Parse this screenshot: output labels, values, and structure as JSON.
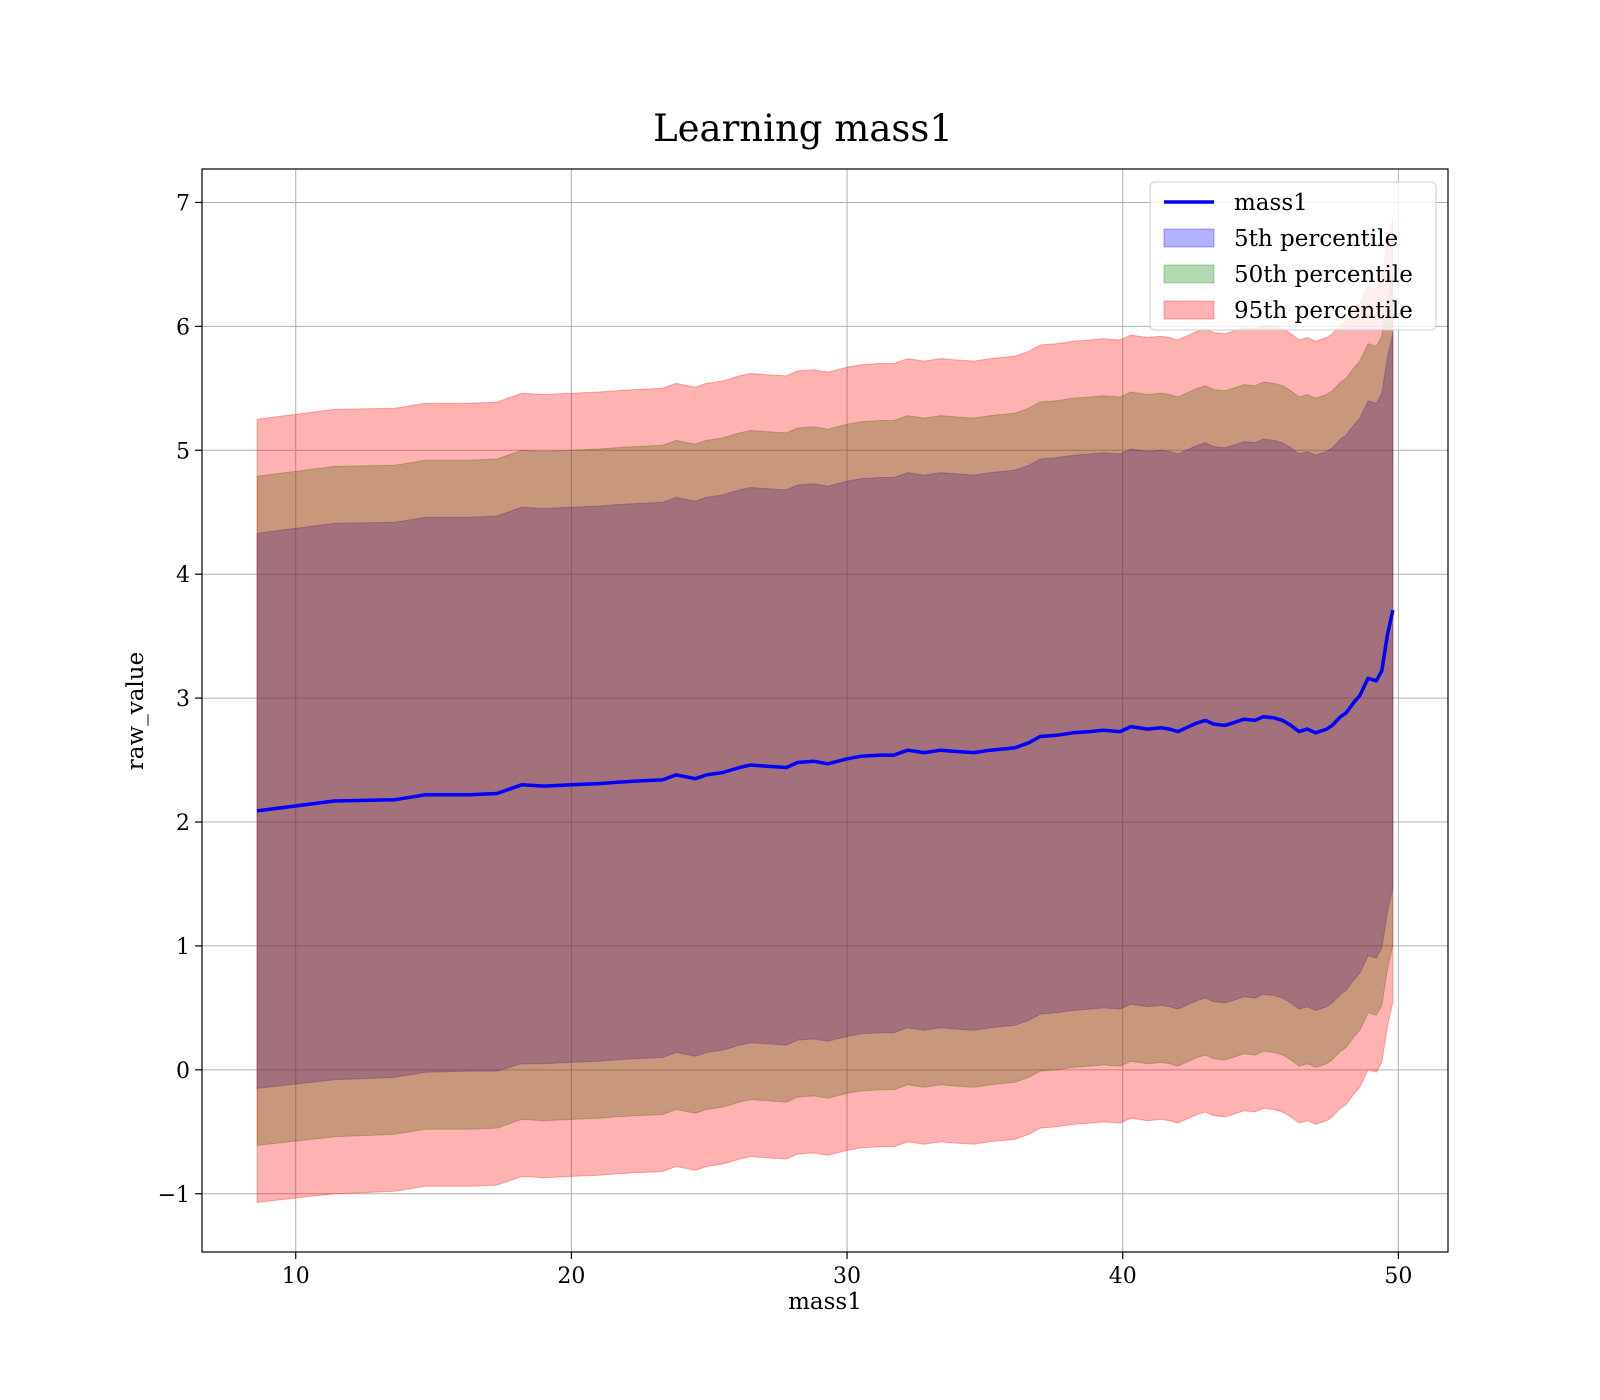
{
  "chart_data": {
    "type": "line",
    "title": "Learning mass1",
    "xlabel": "mass1",
    "ylabel": "raw_value",
    "xlim": [
      6.6,
      51.8
    ],
    "ylim": [
      -1.47,
      7.27
    ],
    "xticks": [
      10,
      20,
      30,
      40,
      50
    ],
    "yticks": [
      -1,
      0,
      1,
      2,
      3,
      4,
      5,
      6,
      7
    ],
    "xtick_labels": [
      "10",
      "20",
      "30",
      "40",
      "50"
    ],
    "ytick_labels": [
      "−1",
      "0",
      "1",
      "2",
      "3",
      "4",
      "5",
      "6",
      "7"
    ],
    "grid": true,
    "legend_position": "top-right",
    "legend": [
      {
        "label": "mass1",
        "kind": "line",
        "color": "#0000ff"
      },
      {
        "label": "5th percentile",
        "kind": "patch",
        "color": "#0000ff"
      },
      {
        "label": "50th percentile",
        "kind": "patch",
        "color": "#008000"
      },
      {
        "label": "95th percentile",
        "kind": "patch",
        "color": "#ff0000"
      }
    ],
    "x": [
      8.6,
      11.4,
      13.6,
      14.7,
      16.3,
      17.3,
      18.2,
      19.0,
      20.0,
      21.0,
      21.6,
      22.3,
      23.3,
      23.8,
      24.5,
      24.9,
      25.5,
      26.1,
      26.5,
      27.1,
      27.8,
      28.2,
      28.8,
      29.3,
      30.0,
      30.5,
      31.2,
      31.7,
      32.2,
      32.8,
      33.4,
      33.9,
      34.6,
      35.2,
      36.1,
      36.6,
      37.0,
      37.6,
      38.2,
      38.8,
      39.3,
      39.9,
      40.3,
      40.9,
      41.4,
      41.7,
      42.0,
      42.3,
      42.7,
      43.0,
      43.3,
      43.7,
      44.0,
      44.4,
      44.8,
      45.1,
      45.5,
      45.8,
      46.1,
      46.4,
      46.7,
      47.0,
      47.4,
      47.6,
      47.9,
      48.1,
      48.4,
      48.6,
      48.9,
      49.2,
      49.4,
      49.6,
      49.8
    ],
    "series": [
      {
        "name": "mass1",
        "color": "#0000ff",
        "values": [
          2.09,
          2.17,
          2.18,
          2.22,
          2.22,
          2.23,
          2.3,
          2.29,
          2.3,
          2.31,
          2.32,
          2.33,
          2.34,
          2.38,
          2.35,
          2.38,
          2.4,
          2.44,
          2.46,
          2.45,
          2.44,
          2.48,
          2.49,
          2.47,
          2.51,
          2.53,
          2.54,
          2.54,
          2.58,
          2.56,
          2.58,
          2.57,
          2.56,
          2.58,
          2.6,
          2.64,
          2.69,
          2.7,
          2.72,
          2.73,
          2.74,
          2.73,
          2.77,
          2.75,
          2.76,
          2.75,
          2.73,
          2.76,
          2.8,
          2.82,
          2.79,
          2.78,
          2.8,
          2.83,
          2.82,
          2.85,
          2.84,
          2.82,
          2.78,
          2.73,
          2.75,
          2.72,
          2.75,
          2.78,
          2.85,
          2.88,
          2.97,
          3.02,
          3.16,
          3.14,
          3.22,
          3.51,
          3.71
        ]
      }
    ],
    "bands": [
      {
        "name": "5th percentile",
        "color": "#0000ff",
        "opacity": 0.3,
        "lower": [
          -0.15,
          -0.08,
          -0.06,
          -0.02,
          -0.01,
          -0.01,
          0.05,
          0.05,
          0.06,
          0.07,
          0.08,
          0.09,
          0.1,
          0.14,
          0.11,
          0.14,
          0.16,
          0.2,
          0.22,
          0.21,
          0.2,
          0.24,
          0.25,
          0.23,
          0.27,
          0.29,
          0.3,
          0.3,
          0.34,
          0.32,
          0.34,
          0.33,
          0.32,
          0.34,
          0.36,
          0.4,
          0.45,
          0.46,
          0.48,
          0.49,
          0.5,
          0.49,
          0.53,
          0.51,
          0.52,
          0.51,
          0.49,
          0.52,
          0.56,
          0.58,
          0.55,
          0.54,
          0.56,
          0.59,
          0.58,
          0.61,
          0.6,
          0.58,
          0.54,
          0.49,
          0.51,
          0.48,
          0.51,
          0.54,
          0.61,
          0.64,
          0.73,
          0.78,
          0.92,
          0.9,
          0.98,
          1.27,
          1.47
        ],
        "upper": [
          4.33,
          4.41,
          4.42,
          4.46,
          4.46,
          4.47,
          4.54,
          4.53,
          4.54,
          4.55,
          4.56,
          4.57,
          4.58,
          4.62,
          4.59,
          4.62,
          4.64,
          4.68,
          4.7,
          4.69,
          4.68,
          4.72,
          4.73,
          4.71,
          4.75,
          4.77,
          4.78,
          4.78,
          4.82,
          4.8,
          4.82,
          4.81,
          4.8,
          4.82,
          4.84,
          4.88,
          4.93,
          4.94,
          4.96,
          4.97,
          4.98,
          4.97,
          5.01,
          4.99,
          5.0,
          4.99,
          4.97,
          5.0,
          5.04,
          5.06,
          5.03,
          5.02,
          5.04,
          5.07,
          5.06,
          5.09,
          5.08,
          5.06,
          5.02,
          4.97,
          4.99,
          4.96,
          4.99,
          5.02,
          5.09,
          5.12,
          5.21,
          5.26,
          5.4,
          5.38,
          5.46,
          5.75,
          5.95
        ]
      },
      {
        "name": "50th percentile",
        "color": "#008000",
        "opacity": 0.3,
        "lower": [
          -0.61,
          -0.54,
          -0.52,
          -0.48,
          -0.48,
          -0.47,
          -0.4,
          -0.41,
          -0.4,
          -0.39,
          -0.38,
          -0.37,
          -0.36,
          -0.32,
          -0.35,
          -0.32,
          -0.3,
          -0.26,
          -0.24,
          -0.25,
          -0.26,
          -0.22,
          -0.21,
          -0.23,
          -0.19,
          -0.17,
          -0.16,
          -0.16,
          -0.12,
          -0.14,
          -0.12,
          -0.13,
          -0.14,
          -0.12,
          -0.1,
          -0.06,
          -0.01,
          0.0,
          0.02,
          0.03,
          0.04,
          0.03,
          0.07,
          0.05,
          0.06,
          0.05,
          0.03,
          0.06,
          0.1,
          0.12,
          0.09,
          0.08,
          0.1,
          0.13,
          0.12,
          0.15,
          0.14,
          0.12,
          0.08,
          0.03,
          0.05,
          0.02,
          0.05,
          0.08,
          0.15,
          0.18,
          0.27,
          0.32,
          0.46,
          0.44,
          0.52,
          0.81,
          1.01
        ],
        "upper": [
          4.79,
          4.87,
          4.88,
          4.92,
          4.92,
          4.93,
          5.0,
          4.99,
          5.0,
          5.01,
          5.02,
          5.03,
          5.04,
          5.08,
          5.05,
          5.08,
          5.1,
          5.14,
          5.16,
          5.15,
          5.14,
          5.18,
          5.19,
          5.17,
          5.21,
          5.23,
          5.24,
          5.24,
          5.28,
          5.26,
          5.28,
          5.27,
          5.26,
          5.28,
          5.3,
          5.34,
          5.39,
          5.4,
          5.42,
          5.43,
          5.44,
          5.43,
          5.47,
          5.45,
          5.46,
          5.45,
          5.43,
          5.46,
          5.5,
          5.52,
          5.49,
          5.48,
          5.5,
          5.53,
          5.52,
          5.55,
          5.54,
          5.52,
          5.48,
          5.43,
          5.45,
          5.42,
          5.45,
          5.48,
          5.55,
          5.58,
          5.67,
          5.72,
          5.86,
          5.84,
          5.92,
          6.21,
          6.41
        ]
      },
      {
        "name": "95th percentile",
        "color": "#ff0000",
        "opacity": 0.3,
        "lower": [
          -1.07,
          -1.0,
          -0.98,
          -0.94,
          -0.94,
          -0.93,
          -0.86,
          -0.87,
          -0.86,
          -0.85,
          -0.84,
          -0.83,
          -0.82,
          -0.78,
          -0.81,
          -0.78,
          -0.76,
          -0.72,
          -0.7,
          -0.71,
          -0.72,
          -0.68,
          -0.67,
          -0.69,
          -0.65,
          -0.63,
          -0.62,
          -0.62,
          -0.58,
          -0.6,
          -0.58,
          -0.59,
          -0.6,
          -0.58,
          -0.56,
          -0.52,
          -0.47,
          -0.46,
          -0.44,
          -0.43,
          -0.42,
          -0.43,
          -0.39,
          -0.41,
          -0.4,
          -0.41,
          -0.43,
          -0.4,
          -0.36,
          -0.34,
          -0.37,
          -0.38,
          -0.36,
          -0.33,
          -0.34,
          -0.31,
          -0.32,
          -0.34,
          -0.38,
          -0.43,
          -0.41,
          -0.44,
          -0.41,
          -0.38,
          -0.31,
          -0.28,
          -0.19,
          -0.14,
          0.0,
          -0.02,
          0.06,
          0.35,
          0.55
        ],
        "upper": [
          5.25,
          5.33,
          5.34,
          5.38,
          5.38,
          5.39,
          5.46,
          5.45,
          5.46,
          5.47,
          5.48,
          5.49,
          5.5,
          5.54,
          5.51,
          5.54,
          5.56,
          5.6,
          5.62,
          5.61,
          5.6,
          5.64,
          5.65,
          5.63,
          5.67,
          5.69,
          5.7,
          5.7,
          5.74,
          5.72,
          5.74,
          5.73,
          5.72,
          5.74,
          5.76,
          5.8,
          5.85,
          5.86,
          5.88,
          5.89,
          5.9,
          5.89,
          5.93,
          5.91,
          5.92,
          5.91,
          5.89,
          5.92,
          5.96,
          5.98,
          5.95,
          5.94,
          5.96,
          5.99,
          5.98,
          6.01,
          6.0,
          5.98,
          5.94,
          5.89,
          5.91,
          5.88,
          5.91,
          5.94,
          6.01,
          6.04,
          6.13,
          6.18,
          6.32,
          6.3,
          6.38,
          6.67,
          6.87
        ]
      }
    ]
  }
}
